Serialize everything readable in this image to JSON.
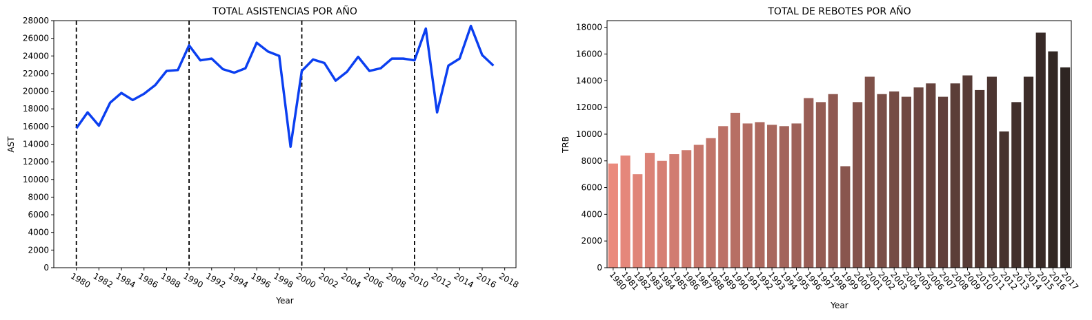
{
  "chart_data": [
    {
      "type": "line",
      "title": "TOTAL ASISTENCIAS POR AÑO",
      "xlabel": "Year",
      "ylabel": "AST",
      "xlim": [
        1978,
        2019
      ],
      "ylim": [
        0,
        28000
      ],
      "xticks": [
        1980,
        1982,
        1984,
        1986,
        1988,
        1990,
        1992,
        1994,
        1996,
        1998,
        2000,
        2002,
        2004,
        2006,
        2008,
        2010,
        2012,
        2014,
        2016,
        2018
      ],
      "yticks": [
        0,
        2000,
        4000,
        6000,
        8000,
        10000,
        12000,
        14000,
        16000,
        18000,
        20000,
        22000,
        24000,
        26000,
        28000
      ],
      "color": "#0b3ff0",
      "vlines": [
        1980,
        1990,
        2000,
        2010
      ],
      "vline_color": "#000000",
      "grid": false,
      "x": [
        1980,
        1981,
        1982,
        1983,
        1984,
        1985,
        1986,
        1987,
        1988,
        1989,
        1990,
        1991,
        1992,
        1993,
        1994,
        1995,
        1996,
        1997,
        1998,
        1999,
        2000,
        2001,
        2002,
        2003,
        2004,
        2005,
        2006,
        2007,
        2008,
        2009,
        2010,
        2011,
        2012,
        2013,
        2014,
        2015,
        2016,
        2017
      ],
      "y": [
        15800,
        17600,
        16100,
        18700,
        19800,
        19000,
        19700,
        20700,
        22300,
        22400,
        25200,
        23500,
        23700,
        22500,
        22100,
        22600,
        25500,
        24500,
        24000,
        13700,
        22300,
        23600,
        23200,
        21200,
        22200,
        23900,
        22300,
        22600,
        23700,
        23700,
        23500,
        27100,
        17600,
        22900,
        23700,
        27400,
        24100,
        22900
      ]
    },
    {
      "type": "bar",
      "title": "TOTAL DE REBOTES POR AÑO",
      "xlabel": "Year",
      "ylabel": "TRB",
      "ylim": [
        0,
        18500
      ],
      "yticks": [
        0,
        2000,
        4000,
        6000,
        8000,
        10000,
        12000,
        14000,
        16000,
        18000
      ],
      "grid": false,
      "color_start": "#ea8a7d",
      "color_end": "#2e2522",
      "categories": [
        "1980",
        "1981",
        "1982",
        "1983",
        "1984",
        "1985",
        "1986",
        "1987",
        "1988",
        "1989",
        "1990",
        "1991",
        "1992",
        "1993",
        "1994",
        "1995",
        "1996",
        "1997",
        "1998",
        "1999",
        "2000",
        "2001",
        "2002",
        "2003",
        "2004",
        "2005",
        "2006",
        "2007",
        "2008",
        "2009",
        "2010",
        "2011",
        "2012",
        "2013",
        "2014",
        "2015",
        "2016",
        "2017"
      ],
      "values": [
        7800,
        8400,
        7000,
        8600,
        8000,
        8500,
        8800,
        9200,
        9700,
        10600,
        11600,
        10800,
        10900,
        10700,
        10600,
        10800,
        12700,
        12400,
        13000,
        7600,
        12400,
        14300,
        13000,
        13200,
        12800,
        13500,
        13800,
        12800,
        13800,
        14400,
        13300,
        14300,
        10200,
        12400,
        14300,
        17600,
        16200,
        15000
      ]
    }
  ]
}
